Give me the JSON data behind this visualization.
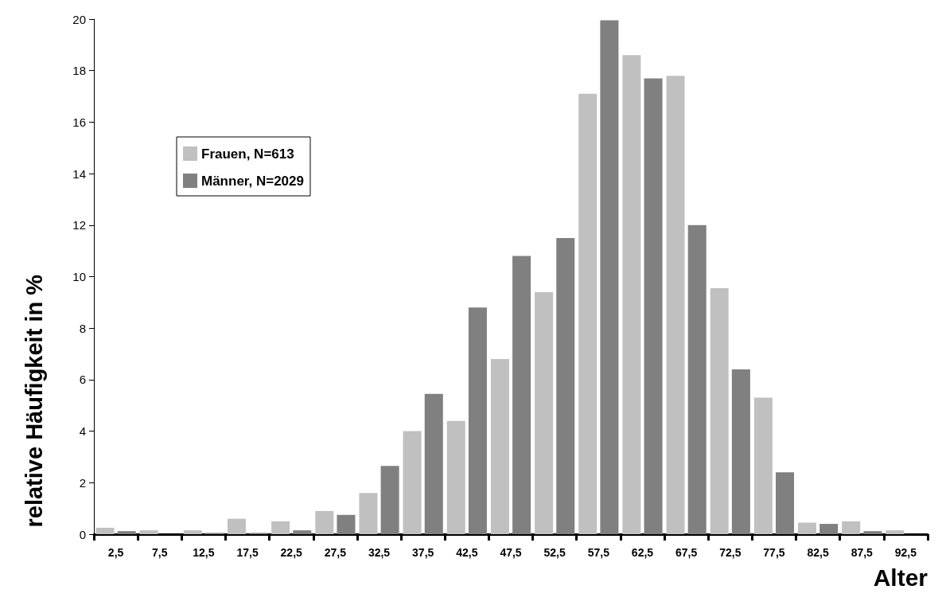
{
  "chart_data": {
    "type": "bar",
    "xlabel": "Alter",
    "ylabel": "relative Häufigkeit in %",
    "categories": [
      "2,5",
      "7,5",
      "12,5",
      "17,5",
      "22,5",
      "27,5",
      "32,5",
      "37,5",
      "42,5",
      "47,5",
      "52,5",
      "57,5",
      "62,5",
      "67,5",
      "72,5",
      "77,5",
      "82,5",
      "87,5",
      "92,5"
    ],
    "series": [
      {
        "name": "Frauen, N=613",
        "color": "#c0c0c0",
        "values": [
          0.25,
          0.15,
          0.15,
          0.6,
          0.5,
          0.9,
          1.6,
          4.0,
          4.4,
          6.8,
          9.4,
          17.1,
          18.6,
          17.8,
          9.55,
          5.3,
          0.45,
          0.5,
          0.15
        ]
      },
      {
        "name": "Männer, N=2029",
        "color": "#808080",
        "values": [
          0.12,
          0,
          0.05,
          0.05,
          0.15,
          0.75,
          2.65,
          5.45,
          8.8,
          10.8,
          11.5,
          19.95,
          17.7,
          12.0,
          6.4,
          2.4,
          0.4,
          0.12,
          0
        ]
      }
    ],
    "ylim": [
      0,
      20
    ],
    "yticks": [
      0,
      2,
      4,
      6,
      8,
      10,
      12,
      14,
      16,
      18,
      20
    ],
    "grid": false,
    "legend": "top left"
  }
}
